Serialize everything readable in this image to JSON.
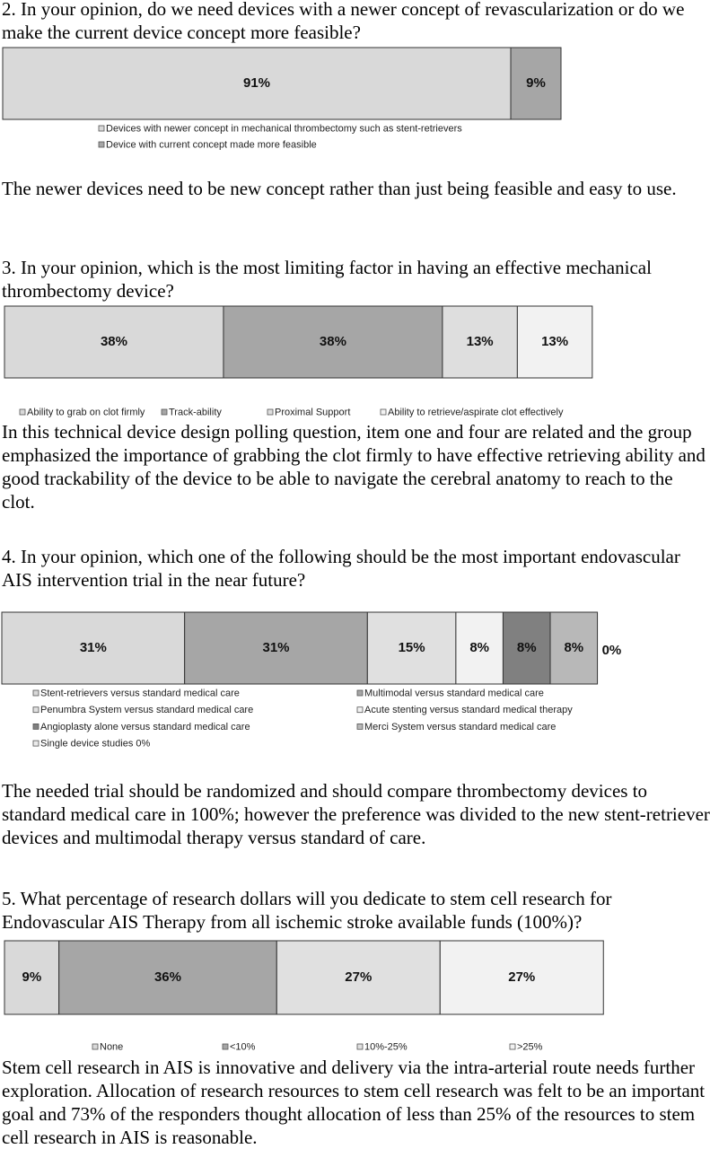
{
  "sections": [
    {
      "question": "2. In your opinion, do we need devices with a newer concept of revascularization or do we make the current device concept more feasible?",
      "comment": "The newer devices need to be new concept rather than just being feasible and easy to use."
    },
    {
      "question": "3. In your opinion, which is the most limiting factor in having an effective mechanical thrombectomy device?",
      "comment": "In this technical device design polling question, item one and four are related and the group emphasized the importance of grabbing the clot firmly to have effective retrieving ability and good trackability of the device to be able to navigate the cerebral anatomy to reach to the clot."
    },
    {
      "question": "4. In your opinion, which one of the following should be the most important endovascular AIS intervention trial in the near future?",
      "comment": "The needed trial should be randomized and should compare thrombectomy devices to standard medical care in 100%; however the preference was divided to the new stent-retriever devices and multimodal therapy versus standard of care."
    },
    {
      "question": "5.  What percentage of research dollars will you dedicate to stem cell research for Endovascular AIS Therapy from all ischemic stroke available funds (100%)?",
      "comment": "Stem cell research in AIS is innovative and delivery via the intra-arterial route needs further exploration. Allocation of research resources to stem cell research was felt to be an important goal and 73% of the responders thought allocation of less than 25% of the resources to stem cell research in AIS is reasonable."
    }
  ],
  "chart_data": [
    {
      "type": "stacked-bar",
      "orientation": "horizontal",
      "series": [
        {
          "name": "Devices with newer concept in mechanical thrombectomy such as stent-retrievers",
          "color": "#d9d9d9",
          "values": [
            91
          ],
          "value_labels": [
            "91%"
          ]
        },
        {
          "name": "Device with current concept made more feasible",
          "color": "#a6a6a6",
          "values": [
            9
          ],
          "value_labels": [
            "9%"
          ]
        }
      ]
    },
    {
      "type": "stacked-bar",
      "orientation": "horizontal",
      "series": [
        {
          "name": "Ability to grab on clot firmly",
          "color": "#d9d9d9",
          "values": [
            38
          ],
          "value_labels": [
            "38%"
          ]
        },
        {
          "name": "Track-ability",
          "color": "#a6a6a6",
          "values": [
            38
          ],
          "value_labels": [
            "38%"
          ]
        },
        {
          "name": "Proximal Support",
          "color": "#dedede",
          "values": [
            13
          ],
          "value_labels": [
            "13%"
          ]
        },
        {
          "name": "Ability to retrieve/aspirate clot effectively",
          "color": "#f2f2f2",
          "values": [
            13
          ],
          "value_labels": [
            "13%"
          ]
        }
      ]
    },
    {
      "type": "stacked-bar",
      "orientation": "horizontal",
      "series": [
        {
          "name": "Stent-retrievers versus standard medical care",
          "color": "#d9d9d9",
          "values": [
            31
          ],
          "value_labels": [
            "31%"
          ]
        },
        {
          "name": "Multimodal versus standard medical care",
          "color": "#a6a6a6",
          "values": [
            31
          ],
          "value_labels": [
            "31%"
          ]
        },
        {
          "name": "Penumbra System versus standard medical care",
          "color": "#e0e0e0",
          "values": [
            15
          ],
          "value_labels": [
            "15%"
          ]
        },
        {
          "name": "Acute stenting versus standard medical therapy",
          "color": "#f2f2f2",
          "values": [
            8
          ],
          "value_labels": [
            "8%"
          ]
        },
        {
          "name": "Angioplasty alone versus standard medical care",
          "color": "#808080",
          "values": [
            8
          ],
          "value_labels": [
            "8%"
          ]
        },
        {
          "name": "Merci System versus standard medical care",
          "color": "#b8b8b8",
          "values": [
            8
          ],
          "value_labels": [
            "8%"
          ]
        },
        {
          "name": "Single device studies 0%",
          "color": "#ebebeb",
          "values": [
            0
          ],
          "value_labels": [
            "0%"
          ]
        }
      ]
    },
    {
      "type": "stacked-bar",
      "orientation": "horizontal",
      "series": [
        {
          "name": "None",
          "color": "#d9d9d9",
          "values": [
            9
          ],
          "value_labels": [
            "9%"
          ]
        },
        {
          "name": "<10%",
          "color": "#a6a6a6",
          "values": [
            36
          ],
          "value_labels": [
            "36%"
          ]
        },
        {
          "name": "10%-25%",
          "color": "#e0e0e0",
          "values": [
            27
          ],
          "value_labels": [
            "27%"
          ]
        },
        {
          "name": ">25%",
          "color": "#f2f2f2",
          "values": [
            27
          ],
          "value_labels": [
            "27%"
          ]
        }
      ]
    }
  ]
}
